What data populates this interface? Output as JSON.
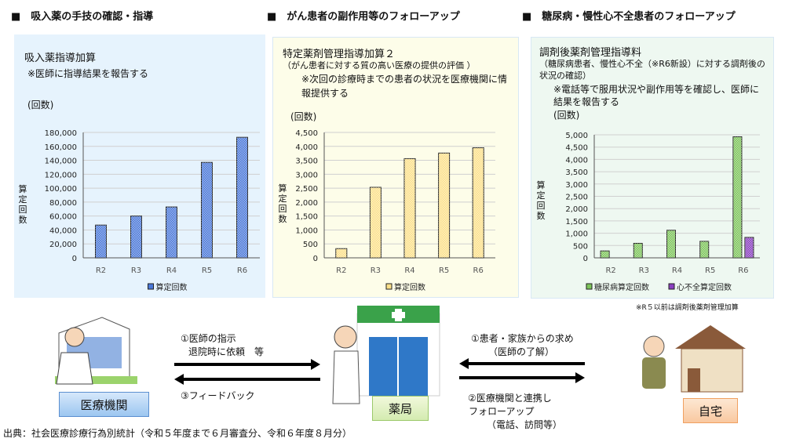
{
  "headers": [
    "■　吸入薬の手技の確認・指導",
    "■　がん患者の副作用等のフォローアップ",
    "■　糖尿病・慢性心不全患者のフォローアップ"
  ],
  "panels": [
    {
      "title": "吸入薬指導加算",
      "subtitle": "",
      "note": "※医師に指導結果を報告する",
      "unit": "(回数)",
      "ylabel": "算定回数",
      "bg": "#e6f3fd"
    },
    {
      "title": "特定薬剤管理指導加算２",
      "subtitle": "（がん患者に対する質の高い医療の提供の評価 ）",
      "note": "※次回の診療時までの患者の状況を医療機関に情報提供する",
      "unit": "(回数)",
      "ylabel": "算定回数",
      "bg": "#fdfde9"
    },
    {
      "title": "調剤後薬剤管理指導料",
      "subtitle": "（糖尿病患者、慢性心不全（※R6新設）に対する調剤後の状況の確認）",
      "note": "※電話等で服用状況や副作用等を確認し、医師に結果を報告する",
      "unit": "(回数)",
      "ylabel": "算定回数",
      "bg": "#eef8f1",
      "footnote": "※R５以前は調剤後薬剤管理加算"
    }
  ],
  "chart_data": [
    {
      "type": "bar",
      "categories": [
        "R2",
        "R3",
        "R4",
        "R5",
        "R6"
      ],
      "ylim": [
        0,
        180000
      ],
      "yticks": [
        "0",
        "20,000",
        "40,000",
        "60,000",
        "80,000",
        "100,000",
        "120,000",
        "140,000",
        "160,000",
        "180,000"
      ],
      "ylabel": "算定回数",
      "grid": true,
      "legend": "bottom",
      "series": [
        {
          "name": "算定回数",
          "values": [
            47000,
            60000,
            73000,
            137000,
            173000
          ],
          "color": "#4a78d8"
        }
      ]
    },
    {
      "type": "bar",
      "categories": [
        "R2",
        "R3",
        "R4",
        "R5",
        "R6"
      ],
      "ylim": [
        0,
        4500
      ],
      "yticks": [
        "0",
        "500",
        "1,000",
        "1,500",
        "2,000",
        "2,500",
        "3,000",
        "3,500",
        "4,000",
        "4,500"
      ],
      "ylabel": "算定回数",
      "grid": true,
      "legend": "bottom",
      "series": [
        {
          "name": "算定回数",
          "values": [
            330,
            2530,
            3560,
            3760,
            3950
          ],
          "color": "#fbe08a"
        }
      ]
    },
    {
      "type": "bar",
      "categories": [
        "R2",
        "R3",
        "R4",
        "R5",
        "R6"
      ],
      "ylim": [
        0,
        5000
      ],
      "yticks": [
        "0",
        "500",
        "1,000",
        "1,500",
        "2,000",
        "2,500",
        "3,000",
        "3,500",
        "4,000",
        "4,500",
        "5,000"
      ],
      "ylabel": "算定回数",
      "grid": true,
      "legend": "bottom",
      "series": [
        {
          "name": "糖尿病算定回数",
          "values": [
            280,
            590,
            1120,
            670,
            4920
          ],
          "color": "#7cc45a"
        },
        {
          "name": "心不全算定回数",
          "values": [
            null,
            null,
            null,
            null,
            830
          ],
          "color": "#8a3fc0"
        }
      ]
    }
  ],
  "flow": {
    "hospital_label": "医療機関",
    "pharmacy_label": "薬局",
    "home_label": "自宅",
    "left_top": [
      "①医師の指示",
      "退院時に依頼　等"
    ],
    "left_bottom": "③フィードバック",
    "right_top": [
      "①患者・家族からの求め",
      "（医師の了解）"
    ],
    "right_bottom": [
      "②医療機関と連携し",
      "フォローアップ",
      "（電話、訪問等）"
    ]
  },
  "source": "出典：社会医療診療行為別統計（令和５年度まで６月審査分、令和６年度８月分）"
}
